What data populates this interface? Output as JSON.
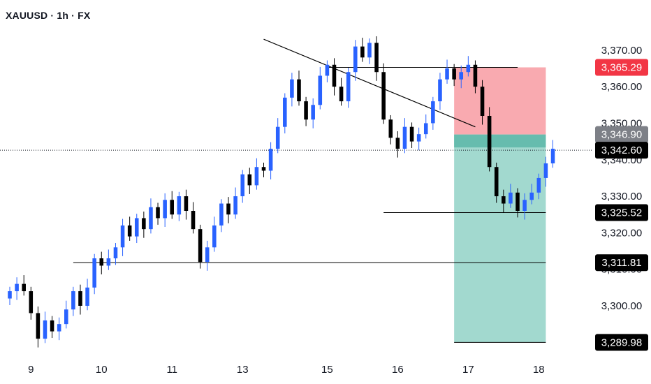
{
  "header": {
    "symbol_label": "XAUUSD · 1h · FX"
  },
  "colors": {
    "bull": "#2962ff",
    "bear": "#000000",
    "stop_zone": "#f9aab0",
    "target_zone": "#a2d9cf",
    "entry_band": "#66bcae",
    "tag_black": "#000000",
    "tag_red": "#f23645",
    "tag_grey": "#7d8087"
  },
  "chart_data": {
    "type": "candlestick",
    "title": "",
    "xlabel": "",
    "ylabel": "",
    "ylim": [
      3287,
      3378
    ],
    "y_ticks": [
      "3,370.00",
      "3,360.00",
      "3,350.00",
      "3,340.00",
      "3,330.00",
      "3,320.00",
      "3,310.00",
      "3,300.00"
    ],
    "y_tick_values": [
      3370,
      3360,
      3350,
      3340,
      3330,
      3320,
      3310,
      3300
    ],
    "x_ticks": [
      "9",
      "10",
      "11",
      "13",
      "15",
      "16",
      "17",
      "18"
    ],
    "x_tick_index": [
      3,
      13,
      23,
      33,
      45,
      55,
      65,
      75
    ],
    "bar_count": 78,
    "x_extent": [
      0,
      82
    ],
    "closes": [
      3304,
      3306,
      3304,
      3298,
      3291,
      3296,
      3293,
      3295,
      3299,
      3304,
      3300,
      3305,
      3313,
      3311,
      3313,
      3316,
      3322,
      3319,
      3324,
      3321,
      3327,
      3324,
      3329,
      3325,
      3330,
      3326,
      3321,
      3312,
      3316,
      3322,
      3328,
      3325,
      3330,
      3336,
      3333,
      3338,
      3337,
      3343,
      3349,
      3357,
      3362,
      3356,
      3351,
      3355,
      3363,
      3366,
      3360,
      3356,
      3364,
      3371,
      3368,
      3372,
      3364,
      3351,
      3346,
      3343,
      3349,
      3345,
      3347,
      3350,
      3356,
      3362,
      3365,
      3362,
      3364,
      3366,
      3360,
      3352,
      3338,
      3330,
      3328,
      3331,
      3326,
      3329,
      3331,
      3335,
      3339,
      3343
    ],
    "last_price": 3342.6,
    "price_tags": [
      {
        "label": "3,365.29",
        "value": 3365.29,
        "style": "red"
      },
      {
        "label": "3,346.90",
        "value": 3346.9,
        "style": "grey"
      },
      {
        "label": "3,342.60",
        "value": 3342.6,
        "style": "black"
      },
      {
        "label": "3,325.52",
        "value": 3325.52,
        "style": "black"
      },
      {
        "label": "3,311.81",
        "value": 3311.81,
        "style": "black"
      },
      {
        "label": "3,289.98",
        "value": 3289.98,
        "style": "black"
      }
    ],
    "horizontal_lines": [
      {
        "value": 3365.29,
        "from": 45,
        "to": 72
      },
      {
        "value": 3325.52,
        "from": 53,
        "to": 76
      },
      {
        "value": 3311.81,
        "from": 9,
        "to": 76
      },
      {
        "value": 3289.98,
        "from": 63,
        "to": 76
      }
    ],
    "trendline": {
      "x1": 36,
      "y1": 3373,
      "x2": 66,
      "y2": 3349
    },
    "short_position": {
      "from": 63,
      "to": 76,
      "entry": 3346.9,
      "stop": 3365.29,
      "target": 3289.98
    }
  }
}
